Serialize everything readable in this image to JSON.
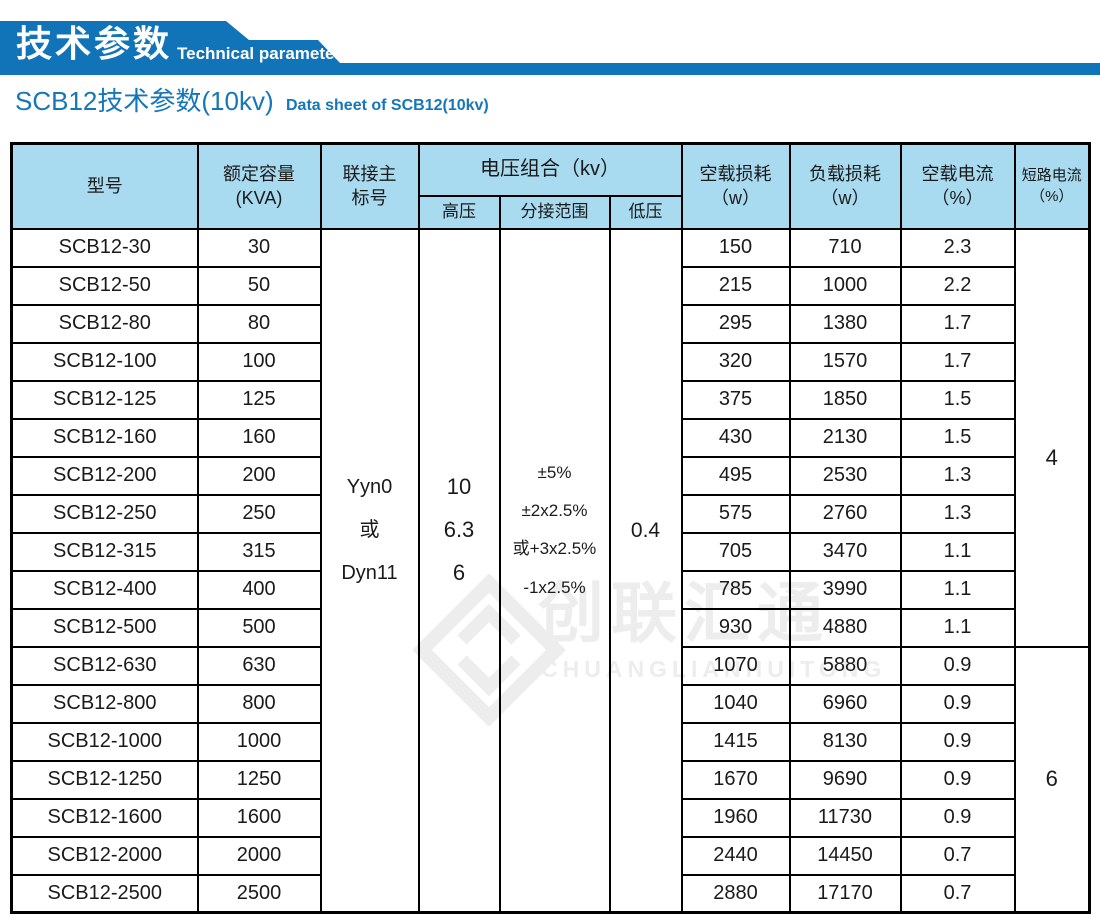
{
  "banner": {
    "title_zh": "技术参数",
    "title_en": "Technical parameter"
  },
  "subtitle": {
    "zh": "SCB12技术参数(10kv)",
    "en": "Data sheet of SCB12(10kv)"
  },
  "watermark": {
    "zh": "创联汇通",
    "en": "CHUANGLIANHUITONG",
    "icon": "diamond-logo-icon"
  },
  "colors": {
    "banner_blue": "#1174b9",
    "subtitle_blue": "#1577b9",
    "header_bg": "#a8daf0",
    "border": "#000000",
    "watermark_gray": "#ededed"
  },
  "table": {
    "headers": {
      "model": "型号",
      "capacity": "额定容量\n(KVA)",
      "connection": "联接主\n标号",
      "voltage_group": "电压组合（kv）",
      "hv": "高压",
      "tap": "分接范围",
      "lv": "低压",
      "no_load_loss": "空载损耗\n（w）",
      "load_loss": "负载损耗\n（w）",
      "no_load_current": "空载电流\n（%）",
      "short_circuit": "短路电流\n（%）"
    },
    "merged": {
      "connection": "Yyn0\n或\nDyn11",
      "hv": "10\n6.3\n6",
      "tap": "±5%\n±2x2.5%\n或+3x2.5%\n-1x2.5%",
      "lv": "0.4",
      "short_circuit_group1": "4",
      "group1_rows": 11,
      "short_circuit_group2": "6",
      "group2_rows": 7
    },
    "rows": [
      {
        "model": "SCB12-30",
        "kva": "30",
        "p0": "150",
        "pk": "710",
        "i0": "2.3"
      },
      {
        "model": "SCB12-50",
        "kva": "50",
        "p0": "215",
        "pk": "1000",
        "i0": "2.2"
      },
      {
        "model": "SCB12-80",
        "kva": "80",
        "p0": "295",
        "pk": "1380",
        "i0": "1.7"
      },
      {
        "model": "SCB12-100",
        "kva": "100",
        "p0": "320",
        "pk": "1570",
        "i0": "1.7"
      },
      {
        "model": "SCB12-125",
        "kva": "125",
        "p0": "375",
        "pk": "1850",
        "i0": "1.5"
      },
      {
        "model": "SCB12-160",
        "kva": "160",
        "p0": "430",
        "pk": "2130",
        "i0": "1.5"
      },
      {
        "model": "SCB12-200",
        "kva": "200",
        "p0": "495",
        "pk": "2530",
        "i0": "1.3"
      },
      {
        "model": "SCB12-250",
        "kva": "250",
        "p0": "575",
        "pk": "2760",
        "i0": "1.3"
      },
      {
        "model": "SCB12-315",
        "kva": "315",
        "p0": "705",
        "pk": "3470",
        "i0": "1.1"
      },
      {
        "model": "SCB12-400",
        "kva": "400",
        "p0": "785",
        "pk": "3990",
        "i0": "1.1"
      },
      {
        "model": "SCB12-500",
        "kva": "500",
        "p0": "930",
        "pk": "4880",
        "i0": "1.1"
      },
      {
        "model": "SCB12-630",
        "kva": "630",
        "p0": "1070",
        "pk": "5880",
        "i0": "0.9"
      },
      {
        "model": "SCB12-800",
        "kva": "800",
        "p0": "1040",
        "pk": "6960",
        "i0": "0.9"
      },
      {
        "model": "SCB12-1000",
        "kva": "1000",
        "p0": "1415",
        "pk": "8130",
        "i0": "0.9"
      },
      {
        "model": "SCB12-1250",
        "kva": "1250",
        "p0": "1670",
        "pk": "9690",
        "i0": "0.9"
      },
      {
        "model": "SCB12-1600",
        "kva": "1600",
        "p0": "1960",
        "pk": "11730",
        "i0": "0.9"
      },
      {
        "model": "SCB12-2000",
        "kva": "2000",
        "p0": "2440",
        "pk": "14450",
        "i0": "0.7"
      },
      {
        "model": "SCB12-2500",
        "kva": "2500",
        "p0": "2880",
        "pk": "17170",
        "i0": "0.7"
      }
    ]
  }
}
